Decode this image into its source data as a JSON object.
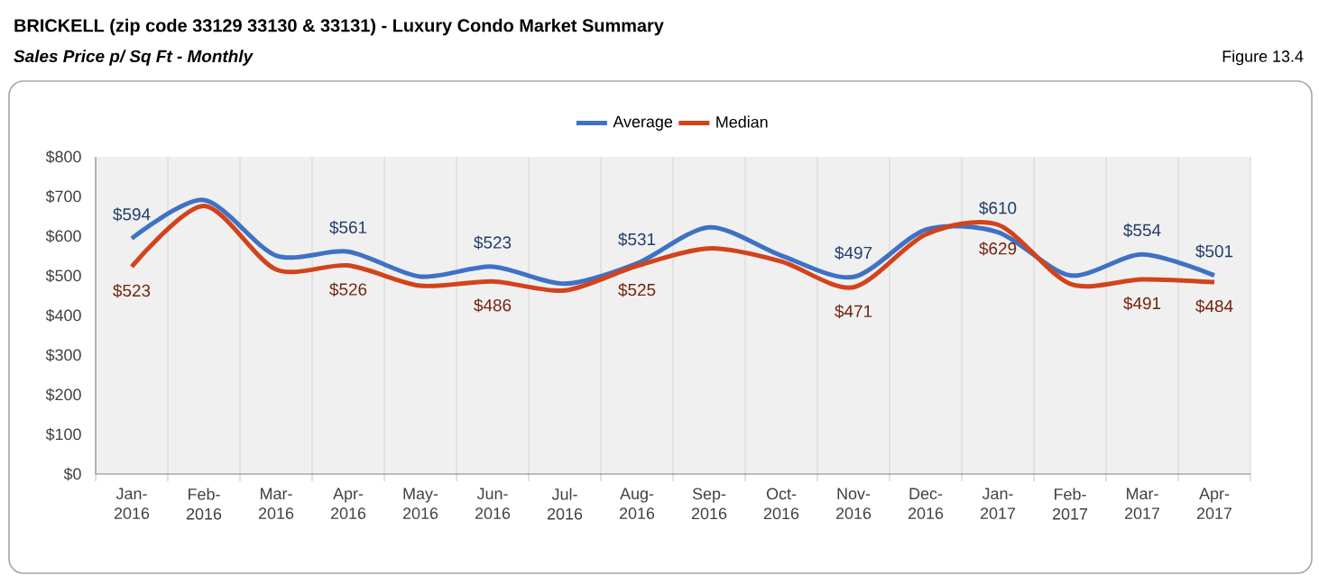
{
  "chart_data": {
    "type": "line",
    "title": "BRICKELL (zip code 33129 33130 & 33131) - Luxury Condo Market Summary",
    "subtitle": "Sales Price  p/ Sq Ft - Monthly",
    "annotations": [
      "Figure 13.4"
    ],
    "categories": [
      "Jan-2016",
      "Feb-2016",
      "Mar-2016",
      "Apr-2016",
      "May-2016",
      "Jun-2016",
      "Jul-2016",
      "Aug-2016",
      "Sep-2016",
      "Oct-2016",
      "Nov-2016",
      "Dec-2016",
      "Jan-2017",
      "Feb-2017",
      "Mar-2017",
      "Apr-2017"
    ],
    "series": [
      {
        "name": "Average",
        "color": "#3f71c4",
        "values": [
          594,
          691,
          551,
          561,
          498,
          523,
          480,
          531,
          622,
          551,
          497,
          616,
          610,
          501,
          554,
          501
        ],
        "value_labels": [
          "$594",
          null,
          null,
          "$561",
          null,
          "$523",
          null,
          "$531",
          null,
          null,
          "$497",
          null,
          "$610",
          null,
          "$554",
          "$501"
        ]
      },
      {
        "name": "Median",
        "color": "#d2431c",
        "values": [
          523,
          676,
          516,
          526,
          475,
          486,
          463,
          525,
          569,
          536,
          471,
          604,
          629,
          480,
          491,
          484
        ],
        "value_labels": [
          "$523",
          null,
          null,
          "$526",
          null,
          "$486",
          null,
          "$525",
          null,
          null,
          "$471",
          null,
          "$629",
          null,
          "$491",
          "$484"
        ]
      }
    ],
    "ylim": [
      0,
      800
    ],
    "yticks": [
      {
        "value": 0,
        "label": "$0"
      },
      {
        "value": 100,
        "label": "$100"
      },
      {
        "value": 200,
        "label": "$200"
      },
      {
        "value": 300,
        "label": "$300"
      },
      {
        "value": 400,
        "label": "$400"
      },
      {
        "value": 500,
        "label": "$500"
      },
      {
        "value": 600,
        "label": "$600"
      },
      {
        "value": 700,
        "label": "$700"
      },
      {
        "value": 800,
        "label": "$800"
      }
    ],
    "grid": "x",
    "legend": "top",
    "marker": "none",
    "line_style": "solid"
  }
}
